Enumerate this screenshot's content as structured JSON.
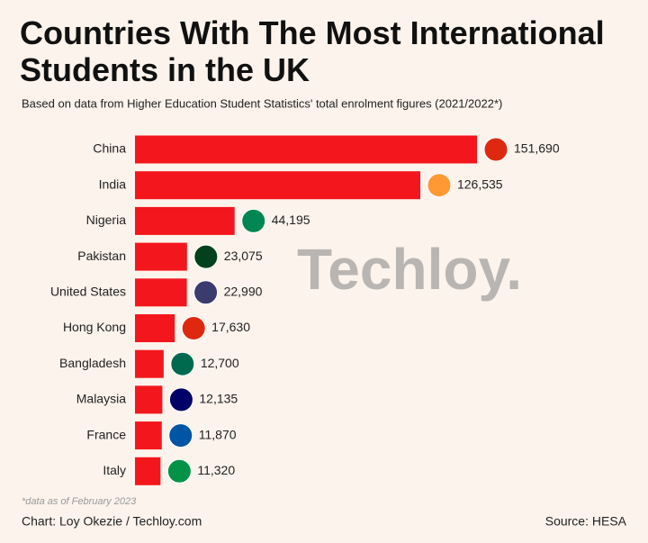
{
  "chart_data": {
    "type": "bar",
    "orientation": "horizontal",
    "title": "Countries With The Most International Students in the UK",
    "subtitle": "Based on data from Higher Education Student Statistics' total enrolment figures (2021/2022*)",
    "categories": [
      "China",
      "India",
      "Nigeria",
      "Pakistan",
      "United States",
      "Hong Kong",
      "Bangladesh",
      "Malaysia",
      "France",
      "Italy"
    ],
    "values": [
      151690,
      126535,
      44195,
      23075,
      22990,
      17630,
      12700,
      12135,
      11870,
      11320
    ],
    "value_labels": [
      "151,690",
      "126,535",
      "44,195",
      "23,075",
      "22,990",
      "17,630",
      "12,700",
      "12,135",
      "11,870",
      "11,320"
    ],
    "color": "#f3161c",
    "watermark": "Techloy.",
    "footnote": "*data as of February 2023",
    "credit": "Chart: Loy Okezie / Techloy.com",
    "source": "Source: HESA"
  }
}
